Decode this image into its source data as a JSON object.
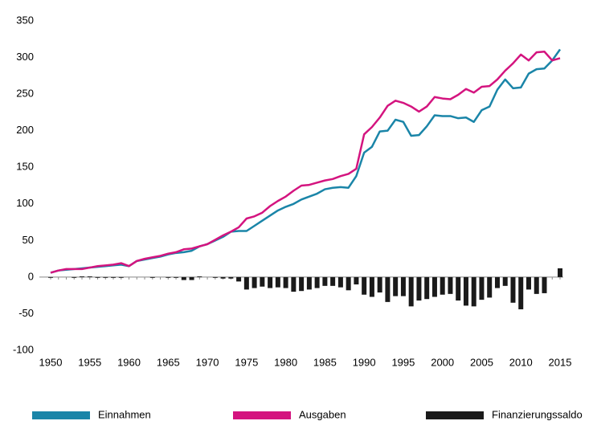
{
  "chart_data": {
    "type": "line",
    "x": [
      1950,
      1951,
      1952,
      1953,
      1954,
      1955,
      1956,
      1957,
      1958,
      1959,
      1960,
      1961,
      1962,
      1963,
      1964,
      1965,
      1966,
      1967,
      1968,
      1969,
      1970,
      1971,
      1972,
      1973,
      1974,
      1975,
      1976,
      1977,
      1978,
      1979,
      1980,
      1981,
      1982,
      1983,
      1984,
      1985,
      1986,
      1987,
      1988,
      1989,
      1990,
      1991,
      1992,
      1993,
      1994,
      1995,
      1996,
      1997,
      1998,
      1999,
      2000,
      2001,
      2002,
      2003,
      2004,
      2005,
      2006,
      2007,
      2008,
      2009,
      2010,
      2011,
      2012,
      2013,
      2014,
      2015
    ],
    "series": [
      {
        "name": "Einnahmen",
        "color": "#1a85a8",
        "type": "line",
        "values": [
          6,
          9,
          10,
          11,
          12,
          13,
          14,
          15,
          16,
          17,
          15,
          22,
          24,
          26,
          28,
          31,
          33,
          34,
          36,
          42,
          45,
          50,
          55,
          62,
          63,
          63,
          70,
          77,
          84,
          91,
          96,
          100,
          106,
          110,
          114,
          120,
          122,
          123,
          122,
          138,
          170,
          178,
          199,
          200,
          215,
          212,
          193,
          194,
          206,
          221,
          220,
          220,
          217,
          218,
          212,
          228,
          233,
          256,
          270,
          258,
          259,
          278,
          284,
          285,
          296,
          311
        ]
      },
      {
        "name": "Ausgaben",
        "color": "#d4147f",
        "type": "line",
        "values": [
          6,
          9,
          11,
          11,
          11,
          13,
          15,
          16,
          17,
          19,
          15,
          22,
          25,
          27,
          29,
          32,
          34,
          38,
          39,
          42,
          45,
          51,
          57,
          62,
          68,
          80,
          83,
          88,
          97,
          104,
          110,
          118,
          125,
          126,
          129,
          132,
          134,
          138,
          141,
          148,
          195,
          205,
          218,
          234,
          241,
          238,
          233,
          226,
          233,
          246,
          244,
          243,
          249,
          257,
          252,
          260,
          261,
          270,
          282,
          292,
          304,
          296,
          307,
          308,
          296,
          299
        ]
      },
      {
        "name": "Finanzierungssaldo",
        "color": "#1a1a1a",
        "type": "bar",
        "values": [
          -1,
          0,
          0,
          -1,
          1,
          1,
          -1,
          -1,
          -1,
          -1,
          0,
          0,
          0,
          -1,
          0,
          -1,
          -1,
          -4,
          -4,
          1,
          0,
          -1,
          -2,
          -2,
          -6,
          -17,
          -15,
          -13,
          -15,
          -14,
          -15,
          -20,
          -19,
          -17,
          -15,
          -12,
          -12,
          -14,
          -18,
          -10,
          -24,
          -27,
          -21,
          -34,
          -26,
          -26,
          -40,
          -32,
          -30,
          -27,
          -24,
          -23,
          -32,
          -39,
          -40,
          -31,
          -28,
          -15,
          -12,
          -35,
          -44,
          -17,
          -23,
          -22,
          0,
          12
        ]
      }
    ],
    "xlim": [
      1950,
      2015
    ],
    "xticks": [
      1950,
      1955,
      1960,
      1965,
      1970,
      1975,
      1980,
      1985,
      1990,
      1995,
      2000,
      2005,
      2010,
      2015
    ],
    "ylim": [
      -100,
      350
    ],
    "yticks": [
      -100,
      -50,
      0,
      50,
      100,
      150,
      200,
      250,
      300,
      350
    ],
    "legend": "bottom"
  }
}
